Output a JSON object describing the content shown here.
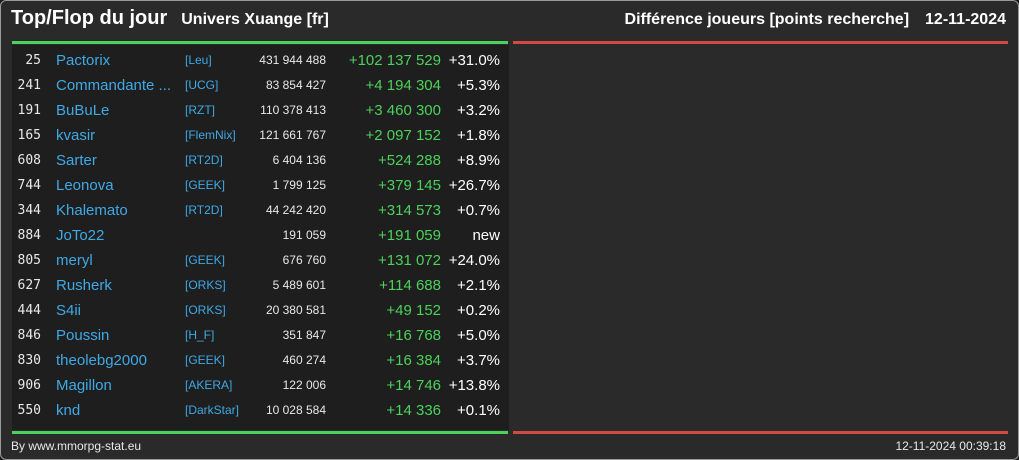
{
  "header": {
    "title": "Top/Flop du jour",
    "server": "Univers Xuange [fr]",
    "metric": "Différence joueurs [points recherche]",
    "date": "12-11-2024"
  },
  "colors": {
    "gain": "#4cd15a",
    "loss": "#d24a44",
    "player_link": "#3fa9e6"
  },
  "rows": [
    {
      "rank": "25",
      "name": "Pactorix",
      "tag": "[Leu]",
      "points": "431 944 488",
      "diff": "+102 137 529",
      "pct": "+31.0%"
    },
    {
      "rank": "241",
      "name": "Commandante ...",
      "tag": "[UCG]",
      "points": "83 854 427",
      "diff": "+4 194 304",
      "pct": "+5.3%"
    },
    {
      "rank": "191",
      "name": "BuBuLe",
      "tag": "[RZT]",
      "points": "110 378 413",
      "diff": "+3 460 300",
      "pct": "+3.2%"
    },
    {
      "rank": "165",
      "name": "kvasir",
      "tag": "[FlemNix]",
      "points": "121 661 767",
      "diff": "+2 097 152",
      "pct": "+1.8%"
    },
    {
      "rank": "608",
      "name": "Sarter",
      "tag": "[RT2D]",
      "points": "6 404 136",
      "diff": "+524 288",
      "pct": "+8.9%"
    },
    {
      "rank": "744",
      "name": "Leonova",
      "tag": "[GEEK]",
      "points": "1 799 125",
      "diff": "+379 145",
      "pct": "+26.7%"
    },
    {
      "rank": "344",
      "name": "Khalemato",
      "tag": "[RT2D]",
      "points": "44 242 420",
      "diff": "+314 573",
      "pct": "+0.7%"
    },
    {
      "rank": "884",
      "name": "JoTo22",
      "tag": "",
      "points": "191 059",
      "diff": "+191 059",
      "pct": "new"
    },
    {
      "rank": "805",
      "name": "meryl",
      "tag": "[GEEK]",
      "points": "676 760",
      "diff": "+131 072",
      "pct": "+24.0%"
    },
    {
      "rank": "627",
      "name": "Rusherk",
      "tag": "[ORKS]",
      "points": "5 489 601",
      "diff": "+114 688",
      "pct": "+2.1%"
    },
    {
      "rank": "444",
      "name": "S4ii",
      "tag": "[ORKS]",
      "points": "20 380 581",
      "diff": "+49 152",
      "pct": "+0.2%"
    },
    {
      "rank": "846",
      "name": "Poussin",
      "tag": "[H_F]",
      "points": "351 847",
      "diff": "+16 768",
      "pct": "+5.0%"
    },
    {
      "rank": "830",
      "name": "theolebg2000",
      "tag": "[GEEK]",
      "points": "460 274",
      "diff": "+16 384",
      "pct": "+3.7%"
    },
    {
      "rank": "906",
      "name": "Magillon",
      "tag": "[AKERA]",
      "points": "122 006",
      "diff": "+14 746",
      "pct": "+13.8%"
    },
    {
      "rank": "550",
      "name": "knd",
      "tag": "[DarkStar]",
      "points": "10 028 584",
      "diff": "+14 336",
      "pct": "+0.1%"
    }
  ],
  "footer": {
    "credit": "By www.mmorpg-stat.eu",
    "timestamp": "12-11-2024 00:39:18"
  }
}
